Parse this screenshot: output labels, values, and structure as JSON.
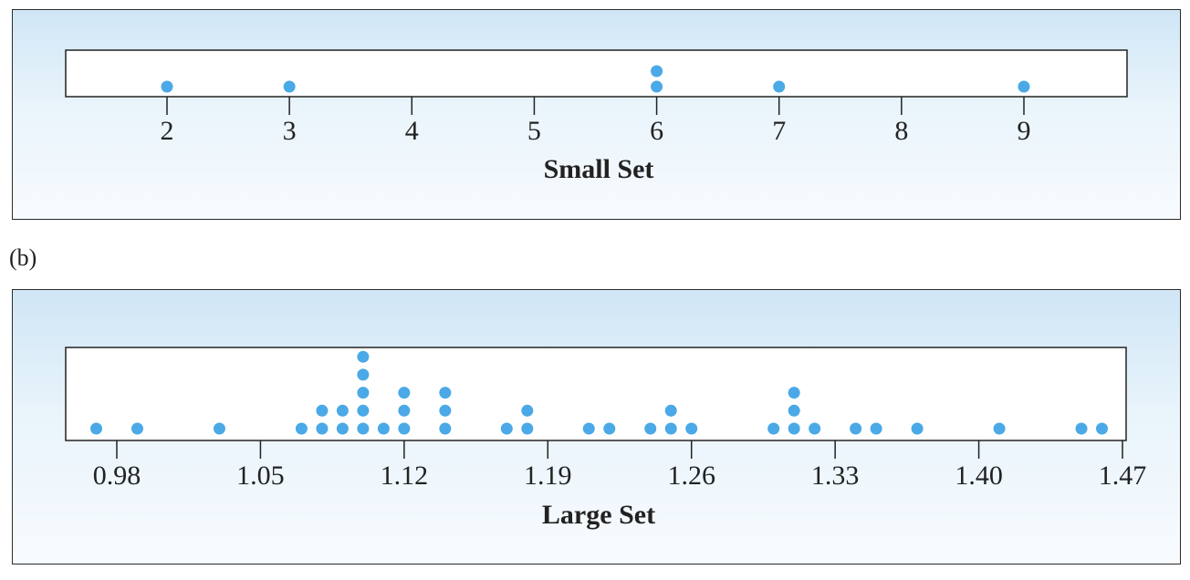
{
  "sublabel_b": "(b)",
  "chart_data": [
    {
      "type": "scatter",
      "subtype": "dot-plot",
      "title": "",
      "xlabel": "Small Set",
      "ylabel": "",
      "xlim": [
        1.2,
        9.8
      ],
      "xticks": [
        2,
        3,
        4,
        5,
        6,
        7,
        8,
        9
      ],
      "tick_labels": [
        "2",
        "3",
        "4",
        "5",
        "6",
        "7",
        "8",
        "9"
      ],
      "values": [
        2,
        3,
        6,
        6,
        7,
        9
      ],
      "dot_color": "#4aa9e6",
      "grid": false
    },
    {
      "type": "scatter",
      "subtype": "dot-plot",
      "title": "",
      "xlabel": "Large Set",
      "ylabel": "",
      "xlim": [
        0.945,
        1.47
      ],
      "xticks": [
        0.98,
        1.05,
        1.12,
        1.19,
        1.26,
        1.33,
        1.4,
        1.47
      ],
      "tick_labels": [
        "0.98",
        "1.05",
        "1.12",
        "1.19",
        "1.26",
        "1.33",
        "1.40",
        "1.47"
      ],
      "values": [
        0.97,
        0.99,
        1.03,
        1.07,
        1.08,
        1.08,
        1.09,
        1.09,
        1.1,
        1.1,
        1.1,
        1.1,
        1.1,
        1.11,
        1.12,
        1.12,
        1.12,
        1.14,
        1.14,
        1.14,
        1.17,
        1.18,
        1.18,
        1.21,
        1.22,
        1.24,
        1.25,
        1.25,
        1.26,
        1.3,
        1.31,
        1.31,
        1.31,
        1.32,
        1.34,
        1.35,
        1.37,
        1.41,
        1.45,
        1.46
      ],
      "dot_color": "#4aa9e6",
      "grid": false
    }
  ]
}
